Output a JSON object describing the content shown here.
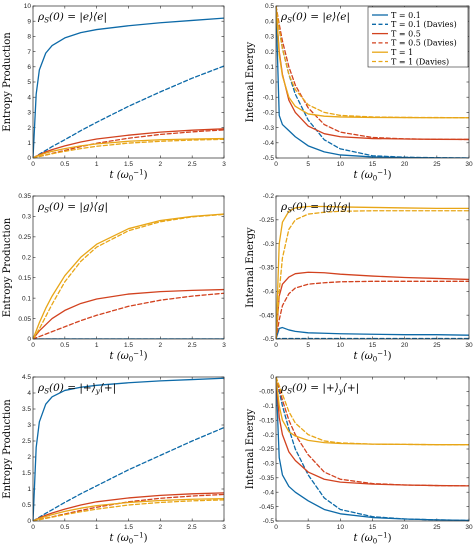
{
  "colors": {
    "T=0.1": "#0d6aa8",
    "T=0.5": "#d2421f",
    "T=1": "#e8a617",
    "axis": "#262626",
    "grid": "#ffffff"
  },
  "legend": {
    "placement": "top-right (panel 2)",
    "entries": [
      "T = 0.1",
      "T = 0.1 (Davies)",
      "T = 0.5",
      "T = 0.5 (Davies)",
      "T = 1",
      "T = 1 (Davies)"
    ]
  },
  "chart_data": [
    {
      "type": "line",
      "title": "ρS(0) = |e⟩⟨e|",
      "xlabel": "t (ω0⁻¹)",
      "ylabel": "Entropy Production",
      "xlim": [
        0,
        3
      ],
      "ylim": [
        0,
        10
      ],
      "xticks": [
        "0",
        "0.5",
        "1",
        "1.5",
        "2",
        "2.5",
        "3"
      ],
      "yticks": [
        "0",
        "1",
        "2",
        "3",
        "4",
        "5",
        "6",
        "7",
        "8",
        "9",
        "10"
      ],
      "x": [
        0,
        0.05,
        0.1,
        0.2,
        0.3,
        0.5,
        0.75,
        1,
        1.5,
        2,
        2.5,
        3
      ],
      "series": [
        {
          "name": "T = 0.1",
          "style": "solid",
          "color": "#0d6aa8",
          "values": [
            0,
            4.2,
            5.8,
            6.9,
            7.4,
            7.9,
            8.25,
            8.45,
            8.7,
            8.9,
            9.05,
            9.2
          ]
        },
        {
          "name": "T = 0.1 (Davies)",
          "style": "dashed",
          "color": "#0d6aa8",
          "values": [
            0,
            0.12,
            0.25,
            0.5,
            0.75,
            1.2,
            1.8,
            2.35,
            3.4,
            4.35,
            5.25,
            6.05
          ]
        },
        {
          "name": "T = 0.5",
          "style": "solid",
          "color": "#d2421f",
          "values": [
            0,
            0.12,
            0.22,
            0.4,
            0.55,
            0.8,
            1.05,
            1.25,
            1.5,
            1.7,
            1.83,
            1.92
          ]
        },
        {
          "name": "T = 0.5 (Davies)",
          "style": "dashed",
          "color": "#d2421f",
          "values": [
            0,
            0.05,
            0.1,
            0.2,
            0.3,
            0.5,
            0.75,
            0.97,
            1.3,
            1.55,
            1.72,
            1.85
          ]
        },
        {
          "name": "T = 1",
          "style": "solid",
          "color": "#e8a617",
          "values": [
            0,
            0.1,
            0.18,
            0.32,
            0.44,
            0.62,
            0.8,
            0.93,
            1.1,
            1.2,
            1.25,
            1.28
          ]
        },
        {
          "name": "T = 1 (Davies)",
          "style": "dashed",
          "color": "#e8a617",
          "values": [
            0,
            0.05,
            0.1,
            0.19,
            0.28,
            0.44,
            0.62,
            0.77,
            0.98,
            1.1,
            1.18,
            1.23
          ]
        }
      ]
    },
    {
      "type": "line",
      "title": "ρS(0) = |e⟩⟨e|",
      "xlabel": "t (ω0⁻¹)",
      "ylabel": "Internal Energy",
      "xlim": [
        0,
        30
      ],
      "ylim": [
        -0.5,
        0.5
      ],
      "xticks": [
        "0",
        "5",
        "10",
        "15",
        "20",
        "25",
        "30"
      ],
      "yticks": [
        "-0.5",
        "-0.4",
        "-0.3",
        "-0.2",
        "-0.1",
        "0",
        "0.1",
        "0.2",
        "0.3",
        "0.4",
        "0.5"
      ],
      "x": [
        0,
        0.5,
        1,
        2,
        3,
        5,
        7.5,
        10,
        15,
        20,
        25,
        30
      ],
      "series": [
        {
          "name": "T = 0.1",
          "style": "solid",
          "color": "#0d6aa8",
          "values": [
            0.5,
            -0.22,
            -0.28,
            -0.32,
            -0.36,
            -0.42,
            -0.46,
            -0.48,
            -0.493,
            -0.497,
            -0.499,
            -0.5
          ]
        },
        {
          "name": "T = 0.1 (Davies)",
          "style": "dashed",
          "color": "#0d6aa8",
          "values": [
            0.5,
            0.35,
            0.22,
            0.05,
            -0.08,
            -0.25,
            -0.38,
            -0.44,
            -0.485,
            -0.495,
            -0.498,
            -0.5
          ]
        },
        {
          "name": "T = 0.5",
          "style": "solid",
          "color": "#d2421f",
          "values": [
            0.5,
            0.2,
            0.05,
            -0.12,
            -0.2,
            -0.29,
            -0.34,
            -0.36,
            -0.372,
            -0.375,
            -0.377,
            -0.378
          ]
        },
        {
          "name": "T = 0.5 (Davies)",
          "style": "dashed",
          "color": "#d2421f",
          "values": [
            0.5,
            0.38,
            0.27,
            0.1,
            -0.02,
            -0.17,
            -0.28,
            -0.33,
            -0.365,
            -0.374,
            -0.377,
            -0.378
          ]
        },
        {
          "name": "T = 1",
          "style": "solid",
          "color": "#e8a617",
          "values": [
            0.5,
            0.18,
            0.04,
            -0.1,
            -0.16,
            -0.21,
            -0.225,
            -0.23,
            -0.233,
            -0.234,
            -0.235,
            -0.235
          ]
        },
        {
          "name": "T = 1 (Davies)",
          "style": "dashed",
          "color": "#e8a617",
          "values": [
            0.5,
            0.35,
            0.22,
            0.05,
            -0.05,
            -0.15,
            -0.2,
            -0.22,
            -0.23,
            -0.233,
            -0.234,
            -0.235
          ]
        }
      ]
    },
    {
      "type": "line",
      "title": "ρS(0) = |g⟩⟨g|",
      "xlabel": "t (ω0⁻¹)",
      "ylabel": "Entropy Production",
      "xlim": [
        0,
        3
      ],
      "ylim": [
        0,
        0.35
      ],
      "xticks": [
        "0",
        "0.5",
        "1",
        "1.5",
        "2",
        "2.5",
        "3"
      ],
      "yticks": [
        "0",
        "0.05",
        "0.1",
        "0.15",
        "0.2",
        "0.25",
        "0.3",
        "0.35"
      ],
      "x": [
        0,
        0.05,
        0.1,
        0.2,
        0.3,
        0.5,
        0.75,
        1,
        1.5,
        2,
        2.5,
        3
      ],
      "series": [
        {
          "name": "T = 0.1",
          "style": "solid",
          "color": "#0d6aa8",
          "values": [
            0,
            0,
            0,
            0,
            0,
            0,
            0,
            0,
            0,
            0,
            0,
            0
          ]
        },
        {
          "name": "T = 0.1 (Davies)",
          "style": "dashed",
          "color": "#0d6aa8",
          "values": [
            0,
            0,
            0,
            0,
            0,
            0,
            0,
            0,
            0,
            0,
            0,
            0
          ]
        },
        {
          "name": "T = 0.5",
          "style": "solid",
          "color": "#d2421f",
          "values": [
            0,
            0.01,
            0.02,
            0.035,
            0.05,
            0.07,
            0.087,
            0.098,
            0.11,
            0.116,
            0.119,
            0.121
          ]
        },
        {
          "name": "T = 0.5 (Davies)",
          "style": "dashed",
          "color": "#d2421f",
          "values": [
            0,
            0.003,
            0.006,
            0.012,
            0.018,
            0.03,
            0.045,
            0.058,
            0.08,
            0.095,
            0.105,
            0.112
          ]
        },
        {
          "name": "T = 1",
          "style": "solid",
          "color": "#e8a617",
          "values": [
            0,
            0.02,
            0.04,
            0.075,
            0.105,
            0.155,
            0.2,
            0.232,
            0.27,
            0.29,
            0.3,
            0.306
          ]
        },
        {
          "name": "T = 1 (Davies)",
          "style": "dashed",
          "color": "#e8a617",
          "values": [
            0,
            0.012,
            0.025,
            0.055,
            0.085,
            0.14,
            0.19,
            0.225,
            0.265,
            0.287,
            0.299,
            0.305
          ]
        }
      ]
    },
    {
      "type": "line",
      "title": "ρS(0) = |g⟩⟨g|",
      "xlabel": "t (ω0⁻¹)",
      "ylabel": "Internal Energy",
      "xlim": [
        0,
        30
      ],
      "ylim": [
        -0.5,
        -0.2
      ],
      "xticks": [
        "0",
        "5",
        "10",
        "15",
        "20",
        "25",
        "30"
      ],
      "yticks": [
        "-0.5",
        "-0.45",
        "-0.4",
        "-0.35",
        "-0.3",
        "-0.25",
        "-0.2"
      ],
      "x": [
        0,
        0.5,
        1,
        2,
        3,
        5,
        7.5,
        10,
        15,
        20,
        25,
        30
      ],
      "series": [
        {
          "name": "T = 0.1",
          "style": "solid",
          "color": "#0d6aa8",
          "values": [
            -0.5,
            -0.478,
            -0.476,
            -0.481,
            -0.484,
            -0.487,
            -0.488,
            -0.489,
            -0.49,
            -0.491,
            -0.491,
            -0.492
          ]
        },
        {
          "name": "T = 0.1 (Davies)",
          "style": "dashed",
          "color": "#0d6aa8",
          "values": [
            -0.5,
            -0.499,
            -0.499,
            -0.499,
            -0.499,
            -0.499,
            -0.499,
            -0.499,
            -0.499,
            -0.499,
            -0.499,
            -0.499
          ]
        },
        {
          "name": "T = 0.5",
          "style": "solid",
          "color": "#d2421f",
          "values": [
            -0.5,
            -0.41,
            -0.385,
            -0.37,
            -0.363,
            -0.36,
            -0.361,
            -0.364,
            -0.368,
            -0.371,
            -0.373,
            -0.375
          ]
        },
        {
          "name": "T = 0.5 (Davies)",
          "style": "dashed",
          "color": "#d2421f",
          "values": [
            -0.5,
            -0.46,
            -0.43,
            -0.405,
            -0.393,
            -0.385,
            -0.382,
            -0.38,
            -0.379,
            -0.379,
            -0.379,
            -0.379
          ]
        },
        {
          "name": "T = 1",
          "style": "solid",
          "color": "#e8a617",
          "values": [
            -0.5,
            -0.3,
            -0.255,
            -0.232,
            -0.225,
            -0.222,
            -0.222,
            -0.223,
            -0.224,
            -0.225,
            -0.226,
            -0.226
          ]
        },
        {
          "name": "T = 1 (Davies)",
          "style": "dashed",
          "color": "#e8a617",
          "values": [
            -0.5,
            -0.4,
            -0.33,
            -0.27,
            -0.25,
            -0.238,
            -0.234,
            -0.232,
            -0.231,
            -0.231,
            -0.231,
            -0.231
          ]
        }
      ]
    },
    {
      "type": "line",
      "title": "ρS(0) = |+⟩y⟨+|",
      "xlabel": "t (ω0⁻¹)",
      "ylabel": "Entropy Production",
      "xlim": [
        0,
        3
      ],
      "ylim": [
        0,
        4.5
      ],
      "xticks": [
        "0",
        "0.5",
        "1",
        "1.5",
        "2",
        "2.5",
        "3"
      ],
      "yticks": [
        "0",
        "0.5",
        "1",
        "1.5",
        "2",
        "2.5",
        "3",
        "3.5",
        "4",
        "4.5"
      ],
      "x": [
        0,
        0.05,
        0.1,
        0.2,
        0.3,
        0.5,
        0.75,
        1,
        1.5,
        2,
        2.5,
        3
      ],
      "series": [
        {
          "name": "T = 0.1",
          "style": "solid",
          "color": "#0d6aa8",
          "values": [
            0,
            2.3,
            3.1,
            3.65,
            3.88,
            4.08,
            4.18,
            4.24,
            4.32,
            4.38,
            4.42,
            4.46
          ]
        },
        {
          "name": "T = 0.1 (Davies)",
          "style": "dashed",
          "color": "#0d6aa8",
          "values": [
            0,
            0.06,
            0.12,
            0.24,
            0.35,
            0.58,
            0.85,
            1.1,
            1.6,
            2.05,
            2.5,
            2.92
          ]
        },
        {
          "name": "T = 0.5",
          "style": "solid",
          "color": "#d2421f",
          "values": [
            0,
            0.05,
            0.1,
            0.18,
            0.25,
            0.37,
            0.5,
            0.6,
            0.72,
            0.8,
            0.85,
            0.88
          ]
        },
        {
          "name": "T = 0.5 (Davies)",
          "style": "dashed",
          "color": "#d2421f",
          "values": [
            0,
            0.02,
            0.05,
            0.09,
            0.13,
            0.22,
            0.33,
            0.43,
            0.6,
            0.71,
            0.78,
            0.83
          ]
        },
        {
          "name": "T = 1",
          "style": "solid",
          "color": "#e8a617",
          "values": [
            0,
            0.04,
            0.08,
            0.14,
            0.2,
            0.3,
            0.4,
            0.48,
            0.58,
            0.64,
            0.68,
            0.7
          ]
        },
        {
          "name": "T = 1 (Davies)",
          "style": "dashed",
          "color": "#e8a617",
          "values": [
            0,
            0.02,
            0.04,
            0.08,
            0.12,
            0.2,
            0.29,
            0.37,
            0.5,
            0.58,
            0.63,
            0.66
          ]
        }
      ]
    },
    {
      "type": "line",
      "title": "ρS(0) = |+⟩y⟨+|",
      "xlabel": "t (ω0⁻¹)",
      "ylabel": "Internal Energy",
      "xlim": [
        0,
        30
      ],
      "ylim": [
        -0.5,
        0
      ],
      "xticks": [
        "0",
        "5",
        "10",
        "15",
        "20",
        "25",
        "30"
      ],
      "yticks": [
        "-0.5",
        "-0.45",
        "-0.4",
        "-0.35",
        "-0.3",
        "-0.25",
        "-0.2",
        "-0.15",
        "-0.1",
        "-0.05",
        "0"
      ],
      "x": [
        0,
        0.5,
        1,
        2,
        3,
        5,
        7.5,
        10,
        15,
        20,
        25,
        30
      ],
      "series": [
        {
          "name": "T = 0.1",
          "style": "solid",
          "color": "#0d6aa8",
          "values": [
            0,
            -0.28,
            -0.34,
            -0.38,
            -0.4,
            -0.43,
            -0.46,
            -0.475,
            -0.488,
            -0.493,
            -0.496,
            -0.498
          ]
        },
        {
          "name": "T = 0.1 (Davies)",
          "style": "dashed",
          "color": "#0d6aa8",
          "values": [
            0,
            -0.05,
            -0.1,
            -0.18,
            -0.25,
            -0.34,
            -0.42,
            -0.46,
            -0.485,
            -0.493,
            -0.496,
            -0.498
          ]
        },
        {
          "name": "T = 0.5",
          "style": "solid",
          "color": "#d2421f",
          "values": [
            0,
            -0.14,
            -0.2,
            -0.26,
            -0.29,
            -0.33,
            -0.355,
            -0.365,
            -0.372,
            -0.375,
            -0.377,
            -0.378
          ]
        },
        {
          "name": "T = 0.5 (Davies)",
          "style": "dashed",
          "color": "#d2421f",
          "values": [
            0,
            -0.04,
            -0.08,
            -0.15,
            -0.2,
            -0.27,
            -0.33,
            -0.355,
            -0.37,
            -0.375,
            -0.377,
            -0.378
          ]
        },
        {
          "name": "T = 1",
          "style": "solid",
          "color": "#e8a617",
          "values": [
            0,
            -0.1,
            -0.15,
            -0.19,
            -0.205,
            -0.22,
            -0.228,
            -0.231,
            -0.233,
            -0.234,
            -0.235,
            -0.235
          ]
        },
        {
          "name": "T = 1 (Davies)",
          "style": "dashed",
          "color": "#e8a617",
          "values": [
            0,
            -0.03,
            -0.06,
            -0.12,
            -0.16,
            -0.2,
            -0.222,
            -0.229,
            -0.233,
            -0.234,
            -0.235,
            -0.235
          ]
        }
      ]
    }
  ]
}
